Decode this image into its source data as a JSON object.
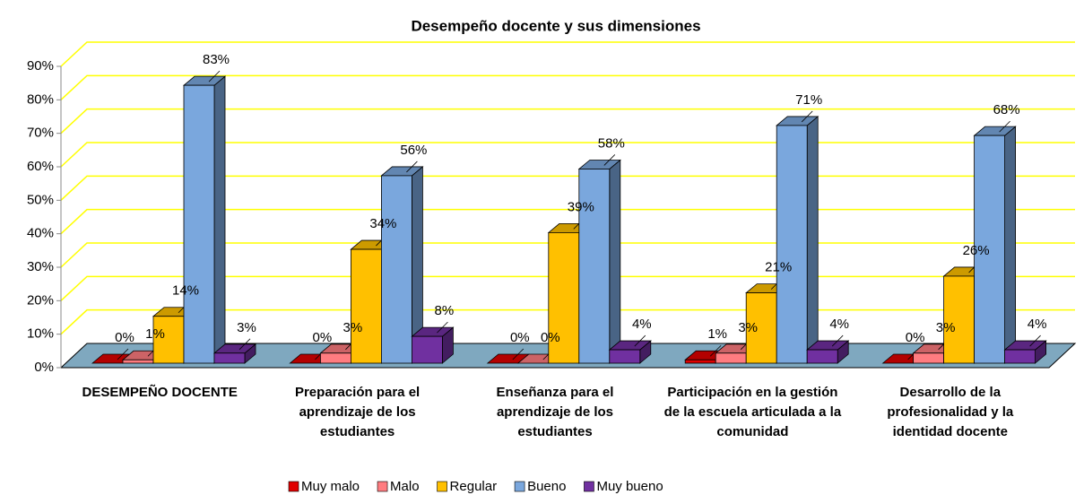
{
  "chart_data": {
    "type": "bar3d",
    "title": "Desempeño docente y sus dimensiones",
    "categories": [
      "DESEMPEÑO DOCENTE",
      "Preparación para el aprendizaje de los estudiantes",
      "Enseñanza para el aprendizaje de los estudiantes",
      "Participación en la gestión de la escuela articulada a la comunidad",
      "Desarrollo de la profesionalidad y la identidad docente"
    ],
    "series": [
      {
        "name": "Muy malo",
        "color": "#e00000",
        "values": [
          0,
          0,
          0,
          1,
          0
        ],
        "value_labels": [
          "0%",
          "0%",
          "0%",
          "1%",
          "0%"
        ]
      },
      {
        "name": "Malo",
        "color": "#ff7c80",
        "values": [
          1,
          3,
          0,
          3,
          3
        ],
        "value_labels": [
          "1%",
          "3%",
          "0%",
          "3%",
          "3%"
        ]
      },
      {
        "name": "Regular",
        "color": "#ffc000",
        "values": [
          14,
          34,
          39,
          21,
          26
        ],
        "value_labels": [
          "14%",
          "34%",
          "39%",
          "21%",
          "26%"
        ]
      },
      {
        "name": "Bueno",
        "color": "#7aa7dd",
        "values": [
          83,
          56,
          58,
          71,
          68
        ],
        "value_labels": [
          "83%",
          "56%",
          "58%",
          "71%",
          "68%"
        ]
      },
      {
        "name": "Muy bueno",
        "color": "#7030a0",
        "values": [
          3,
          8,
          4,
          4,
          4
        ],
        "value_labels": [
          "3%",
          "8%",
          "4%",
          "4%",
          "4%"
        ]
      }
    ],
    "ylim": [
      0,
      90
    ],
    "yticks": [
      {
        "value": 0,
        "label": "0%"
      },
      {
        "value": 10,
        "label": "10%"
      },
      {
        "value": 20,
        "label": "20%"
      },
      {
        "value": 30,
        "label": "30%"
      },
      {
        "value": 40,
        "label": "40%"
      },
      {
        "value": 50,
        "label": "50%"
      },
      {
        "value": 60,
        "label": "60%"
      },
      {
        "value": 70,
        "label": "70%"
      },
      {
        "value": 80,
        "label": "80%"
      },
      {
        "value": 90,
        "label": "90%"
      }
    ],
    "grid": true,
    "grid_color": "#ffff00",
    "floor_color": "#7fa8bf",
    "legend": "bottom"
  }
}
